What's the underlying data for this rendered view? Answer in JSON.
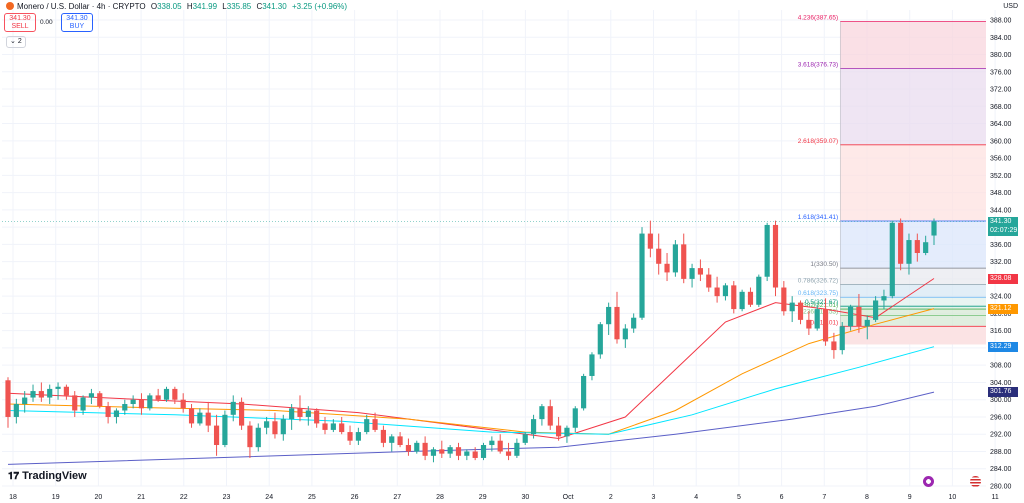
{
  "header": {
    "symbol": "Monero / U.S. Dollar · 4h · CRYPTO",
    "open_label": "O",
    "open": "338.05",
    "high_label": "H",
    "high": "341.99",
    "low_label": "L",
    "low": "335.85",
    "close_label": "C",
    "close": "341.30",
    "change": "+3.25 (+0.96%)"
  },
  "trade": {
    "sell_price": "341.30",
    "sell_label": "SELL",
    "spread": "0.00",
    "buy_price": "341.30",
    "buy_label": "BUY"
  },
  "indicator_count": "2",
  "currency": "USD",
  "brand": "TradingView",
  "price_tags": {
    "last": "341.30",
    "countdown": "02:07:29",
    "ma_red": "328.08",
    "ma_orange": "321.12",
    "ma_cyan": "312.29",
    "ma_blue": "301.76"
  },
  "colors": {
    "up": "#26a69a",
    "down": "#ef5350",
    "ma_red": "#f23645",
    "ma_orange": "#ff9800",
    "ma_cyan": "#00e5ff",
    "ma_blue": "#5b5fc7"
  },
  "chart_data": {
    "type": "candlestick",
    "ylim": [
      280,
      388
    ],
    "y_ticks": [
      280,
      284,
      288,
      292,
      296,
      300,
      304,
      308,
      312,
      316,
      320,
      324,
      328,
      332,
      336,
      340,
      344,
      348,
      352,
      356,
      360,
      364,
      368,
      372,
      376,
      380,
      384,
      388
    ],
    "x_ticks": [
      "18",
      "19",
      "20",
      "21",
      "22",
      "23",
      "24",
      "25",
      "26",
      "27",
      "28",
      "29",
      "30",
      "Oct",
      "2",
      "3",
      "4",
      "5",
      "6",
      "7",
      "8",
      "9",
      "10",
      "11"
    ],
    "candles_ohlc": [
      [
        304.5,
        305.2,
        293.5,
        296.0
      ],
      [
        296.0,
        300.2,
        294.5,
        299.0
      ],
      [
        299.0,
        302.0,
        297.0,
        300.5
      ],
      [
        300.5,
        303.5,
        299.5,
        302.0
      ],
      [
        302.0,
        304.0,
        299.5,
        300.5
      ],
      [
        300.5,
        303.5,
        299.0,
        302.5
      ],
      [
        302.5,
        304.0,
        300.0,
        303.0
      ],
      [
        303.0,
        303.5,
        300.0,
        301.0
      ],
      [
        301.0,
        302.0,
        296.0,
        297.5
      ],
      [
        297.5,
        301.0,
        296.5,
        300.5
      ],
      [
        300.5,
        302.5,
        299.0,
        301.5
      ],
      [
        301.5,
        302.0,
        298.0,
        298.5
      ],
      [
        298.5,
        299.5,
        294.5,
        296.0
      ],
      [
        296.0,
        298.0,
        294.5,
        297.5
      ],
      [
        297.5,
        300.0,
        296.5,
        299.0
      ],
      [
        299.0,
        301.0,
        298.0,
        300.0
      ],
      [
        300.0,
        301.5,
        296.5,
        298.0
      ],
      [
        298.0,
        301.5,
        297.5,
        301.0
      ],
      [
        301.0,
        302.5,
        299.5,
        300.0
      ],
      [
        300.0,
        303.0,
        299.5,
        302.5
      ],
      [
        302.5,
        303.0,
        299.0,
        300.0
      ],
      [
        300.0,
        301.5,
        297.0,
        298.0
      ],
      [
        298.0,
        299.0,
        293.5,
        294.5
      ],
      [
        294.5,
        298.0,
        294.0,
        297.0
      ],
      [
        297.0,
        299.5,
        292.5,
        294.0
      ],
      [
        294.0,
        296.5,
        287.0,
        289.5
      ],
      [
        289.5,
        297.5,
        289.0,
        296.5
      ],
      [
        296.5,
        301.0,
        295.0,
        299.5
      ],
      [
        299.5,
        300.5,
        293.0,
        294.0
      ],
      [
        294.0,
        295.0,
        286.5,
        289.0
      ],
      [
        289.0,
        294.5,
        288.0,
        293.5
      ],
      [
        293.5,
        296.0,
        292.0,
        295.0
      ],
      [
        295.0,
        297.0,
        291.0,
        292.0
      ],
      [
        292.0,
        296.5,
        290.5,
        295.5
      ],
      [
        295.5,
        299.0,
        293.0,
        298.0
      ],
      [
        298.0,
        301.0,
        295.0,
        296.0
      ],
      [
        296.0,
        298.5,
        294.0,
        297.5
      ],
      [
        297.5,
        298.0,
        293.5,
        294.5
      ],
      [
        294.5,
        296.0,
        292.0,
        293.0
      ],
      [
        293.0,
        295.5,
        292.5,
        294.5
      ],
      [
        294.5,
        296.0,
        292.0,
        292.5
      ],
      [
        292.5,
        294.0,
        289.5,
        290.5
      ],
      [
        290.5,
        293.5,
        289.5,
        292.5
      ],
      [
        292.5,
        296.5,
        292.0,
        295.5
      ],
      [
        295.5,
        297.0,
        292.5,
        293.0
      ],
      [
        293.0,
        294.0,
        289.0,
        290.0
      ],
      [
        290.0,
        292.0,
        288.0,
        291.5
      ],
      [
        291.5,
        292.5,
        289.0,
        289.5
      ],
      [
        289.5,
        291.0,
        287.0,
        288.0
      ],
      [
        288.0,
        290.5,
        287.5,
        290.0
      ],
      [
        290.0,
        291.5,
        286.0,
        287.0
      ],
      [
        287.0,
        289.0,
        285.5,
        288.5
      ],
      [
        288.5,
        290.5,
        286.5,
        287.5
      ],
      [
        287.5,
        289.5,
        286.5,
        289.0
      ],
      [
        289.0,
        290.0,
        286.0,
        287.0
      ],
      [
        287.0,
        288.5,
        286.0,
        288.0
      ],
      [
        288.0,
        289.0,
        286.0,
        286.5
      ],
      [
        286.5,
        290.0,
        286.0,
        289.5
      ],
      [
        289.5,
        291.5,
        288.0,
        290.5
      ],
      [
        290.5,
        292.0,
        287.5,
        288.0
      ],
      [
        288.0,
        290.0,
        286.0,
        287.0
      ],
      [
        287.0,
        291.0,
        286.5,
        290.0
      ],
      [
        290.0,
        292.5,
        289.5,
        292.0
      ],
      [
        292.0,
        296.5,
        291.0,
        295.5
      ],
      [
        295.5,
        299.0,
        294.0,
        298.5
      ],
      [
        298.5,
        300.0,
        293.0,
        294.0
      ],
      [
        294.0,
        296.0,
        290.5,
        291.5
      ],
      [
        291.5,
        294.0,
        290.0,
        293.5
      ],
      [
        293.5,
        298.5,
        292.5,
        298.0
      ],
      [
        298.0,
        306.0,
        297.5,
        305.5
      ],
      [
        305.5,
        311.0,
        304.5,
        310.5
      ],
      [
        310.5,
        318.0,
        309.5,
        317.5
      ],
      [
        317.5,
        322.5,
        315.0,
        321.5
      ],
      [
        321.5,
        325.0,
        313.0,
        314.0
      ],
      [
        314.0,
        317.5,
        312.0,
        316.5
      ],
      [
        316.5,
        320.0,
        315.5,
        319.0
      ],
      [
        319.0,
        340.0,
        318.5,
        338.5
      ],
      [
        338.5,
        341.5,
        333.0,
        335.0
      ],
      [
        335.0,
        338.5,
        329.0,
        331.5
      ],
      [
        331.5,
        334.0,
        327.5,
        329.5
      ],
      [
        329.5,
        337.0,
        328.5,
        336.0
      ],
      [
        336.0,
        338.5,
        327.0,
        328.0
      ],
      [
        328.0,
        331.5,
        326.0,
        330.5
      ],
      [
        330.5,
        332.5,
        327.5,
        329.0
      ],
      [
        329.0,
        330.5,
        325.0,
        326.0
      ],
      [
        326.0,
        328.5,
        322.5,
        324.0
      ],
      [
        324.0,
        327.0,
        323.0,
        326.5
      ],
      [
        326.5,
        327.5,
        320.0,
        321.0
      ],
      [
        321.0,
        325.5,
        320.5,
        325.0
      ],
      [
        325.0,
        326.0,
        321.5,
        322.0
      ],
      [
        322.0,
        329.0,
        321.5,
        328.5
      ],
      [
        328.5,
        341.0,
        327.5,
        340.5
      ],
      [
        340.5,
        341.5,
        324.0,
        326.0
      ],
      [
        326.0,
        327.5,
        319.5,
        320.5
      ],
      [
        320.5,
        324.0,
        318.0,
        322.5
      ],
      [
        322.5,
        323.0,
        317.5,
        318.5
      ],
      [
        318.5,
        320.5,
        315.0,
        316.5
      ],
      [
        316.5,
        322.0,
        316.0,
        321.0
      ],
      [
        321.0,
        323.5,
        312.5,
        313.5
      ],
      [
        313.5,
        315.5,
        309.5,
        311.5
      ],
      [
        311.5,
        318.0,
        310.5,
        317.0
      ],
      [
        317.0,
        322.0,
        316.0,
        321.5
      ],
      [
        321.5,
        324.5,
        315.5,
        317.0
      ],
      [
        317.0,
        319.5,
        314.0,
        318.5
      ],
      [
        318.5,
        324.0,
        318.0,
        323.0
      ],
      [
        323.0,
        325.5,
        321.0,
        324.0
      ],
      [
        324.0,
        341.5,
        323.5,
        341.0
      ],
      [
        341.0,
        342.0,
        330.0,
        331.5
      ],
      [
        331.5,
        338.5,
        329.0,
        337.0
      ],
      [
        337.0,
        338.5,
        332.0,
        334.0
      ],
      [
        334.0,
        338.0,
        333.5,
        336.5
      ],
      [
        338.05,
        341.99,
        335.85,
        341.3
      ]
    ],
    "ma_red": [
      [
        0,
        301.5
      ],
      [
        14,
        300.2
      ],
      [
        28,
        299.0
      ],
      [
        42,
        297.0
      ],
      [
        56,
        293.5
      ],
      [
        66,
        291.0
      ],
      [
        74,
        296.0
      ],
      [
        80,
        307.0
      ],
      [
        86,
        318.0
      ],
      [
        92,
        322.5
      ],
      [
        98,
        321.0
      ],
      [
        104,
        319.0
      ],
      [
        111,
        328.08
      ]
    ],
    "ma_orange": [
      [
        0,
        299.0
      ],
      [
        16,
        298.2
      ],
      [
        32,
        297.5
      ],
      [
        48,
        295.5
      ],
      [
        62,
        292.5
      ],
      [
        72,
        292.0
      ],
      [
        80,
        297.5
      ],
      [
        88,
        306.0
      ],
      [
        96,
        313.0
      ],
      [
        104,
        317.5
      ],
      [
        111,
        321.12
      ]
    ],
    "ma_cyan": [
      [
        0,
        297.5
      ],
      [
        20,
        296.5
      ],
      [
        40,
        295.0
      ],
      [
        58,
        292.5
      ],
      [
        72,
        292.0
      ],
      [
        82,
        296.5
      ],
      [
        92,
        302.5
      ],
      [
        102,
        307.5
      ],
      [
        111,
        312.29
      ]
    ],
    "ma_blue": [
      [
        0,
        285.0
      ],
      [
        24,
        286.5
      ],
      [
        48,
        288.0
      ],
      [
        66,
        289.0
      ],
      [
        80,
        292.0
      ],
      [
        94,
        295.5
      ],
      [
        104,
        298.5
      ],
      [
        111,
        301.76
      ]
    ],
    "fib": {
      "levels": [
        {
          "ratio": "0",
          "value": 317.01,
          "label": "0(317.01)"
        },
        {
          "ratio": "0.236",
          "value": 319.53,
          "label": "0.236(319.53)"
        },
        {
          "ratio": "0.382",
          "value": 321.01,
          "label": "0.382(321.01)"
        },
        {
          "ratio": "0.5",
          "value": 321.67,
          "label": "0.5(321.67)"
        },
        {
          "ratio": "0.618",
          "value": 323.75,
          "label": "0.618(323.75)"
        },
        {
          "ratio": "0.786",
          "value": 326.72,
          "label": "0.786(326.72)"
        },
        {
          "ratio": "1",
          "value": 330.5,
          "label": "1(330.50)"
        },
        {
          "ratio": "1.618",
          "value": 341.41,
          "label": "1.618(341.41)"
        },
        {
          "ratio": "2.618",
          "value": 359.07,
          "label": "2.618(359.07)"
        },
        {
          "ratio": "3.618",
          "value": 376.73,
          "label": "3.618(376.73)"
        },
        {
          "ratio": "4.236",
          "value": 387.65,
          "label": "4.236(387.65)"
        }
      ],
      "start_index": 100,
      "bottom_value": 312.8
    },
    "last_price": 341.3
  }
}
